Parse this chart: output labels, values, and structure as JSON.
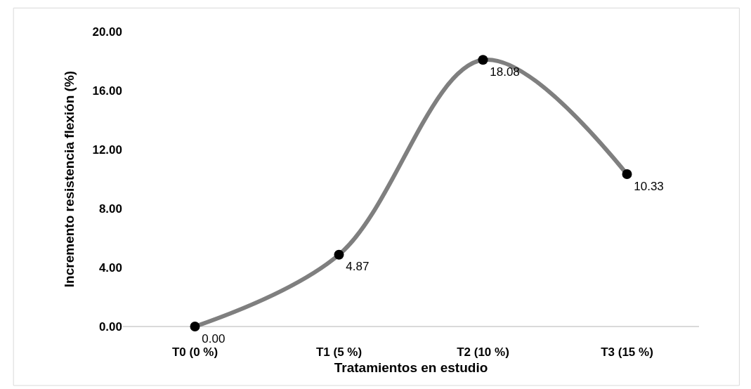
{
  "chart_data": {
    "type": "line",
    "xlabel": "Tratamientos en estudio",
    "ylabel": "Incremento resistencia flexión (%)",
    "categories": [
      "T0 (0 %)",
      "T1 (5 %)",
      "T2 (10 %)",
      "T3 (15 %)"
    ],
    "series": [
      {
        "color": "#7f7f7f",
        "colors": [
          "#000000",
          "#000000",
          "#000000",
          "#000000"
        ],
        "values": [
          0,
          4.87,
          18.08,
          10.33
        ],
        "value_labels": [
          "0.00",
          "4.87",
          "18.08",
          "10.33"
        ]
      }
    ],
    "ylim": [
      0,
      20
    ],
    "yticks": [
      {
        "value": 0,
        "label": "0.00"
      },
      {
        "value": 4,
        "label": "4.00"
      },
      {
        "value": 8,
        "label": "8.00"
      },
      {
        "value": 12,
        "label": "12.00"
      },
      {
        "value": 16,
        "label": "16.00"
      },
      {
        "value": 20,
        "label": "20.00"
      }
    ],
    "legend": false,
    "marker": "circle",
    "line_style": "solid"
  }
}
